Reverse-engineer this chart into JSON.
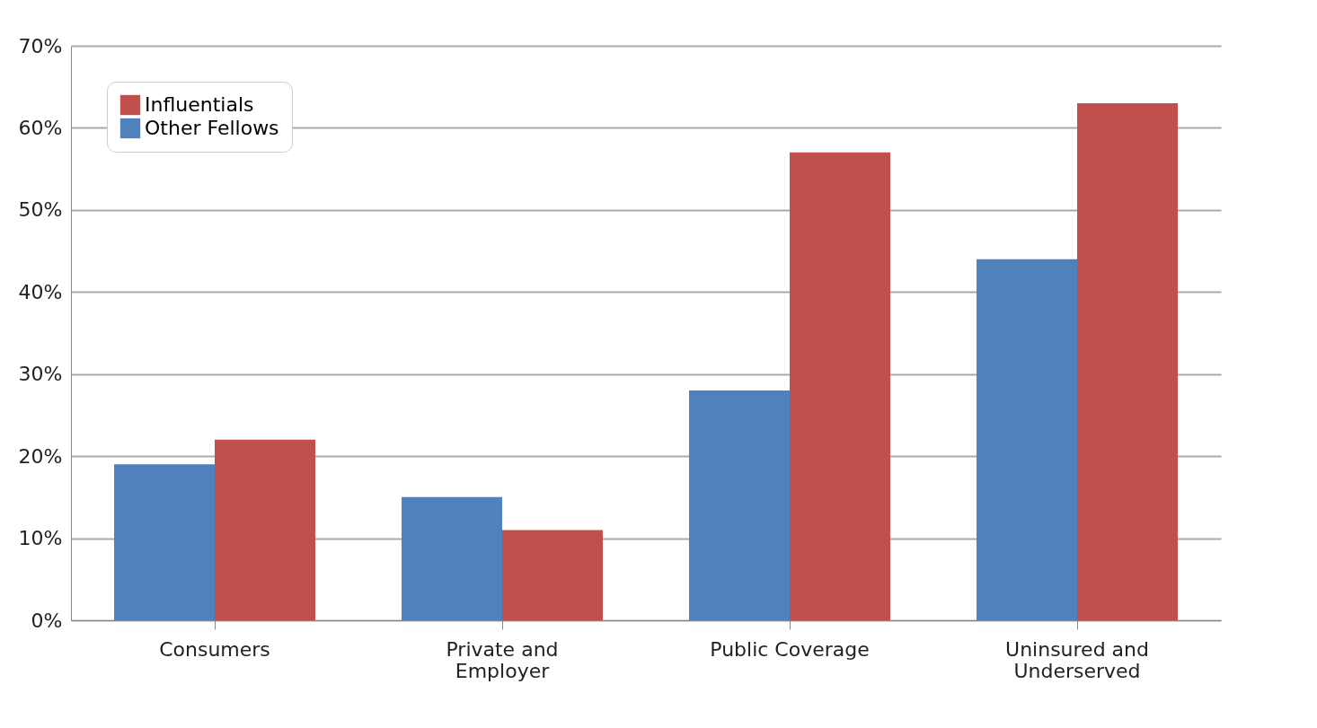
{
  "chart_data": {
    "type": "bar",
    "categories": [
      "Consumers",
      "Private and Employer",
      "Public Coverage",
      "Uninsured and Underserved"
    ],
    "series": [
      {
        "name": "Other Fellows",
        "color": "#4f81bd",
        "values": [
          19,
          15,
          28,
          44
        ]
      },
      {
        "name": "Influentials",
        "color": "#c0504d",
        "values": [
          22,
          11,
          57,
          63
        ]
      }
    ],
    "ylim": [
      0,
      70
    ],
    "yticks": [
      {
        "value": 0,
        "label": "0%"
      },
      {
        "value": 10,
        "label": "10%"
      },
      {
        "value": 20,
        "label": "20%"
      },
      {
        "value": 30,
        "label": "30%"
      },
      {
        "value": 40,
        "label": "40%"
      },
      {
        "value": 50,
        "label": "50%"
      },
      {
        "value": 60,
        "label": "60%"
      },
      {
        "value": 70,
        "label": "70%"
      }
    ],
    "grid": "y",
    "legend": "top left"
  }
}
